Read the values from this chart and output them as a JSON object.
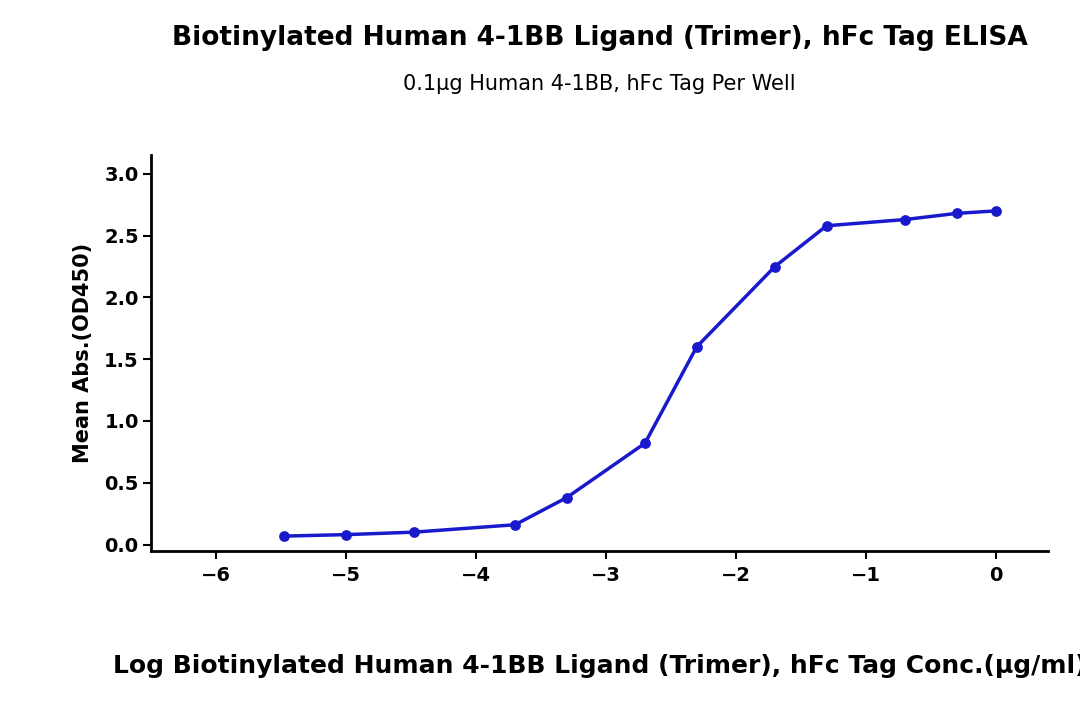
{
  "title": "Biotinylated Human 4-1BB Ligand (Trimer), hFc Tag ELISA",
  "subtitle": "0.1μg Human 4-1BB, hFc Tag Per Well",
  "xlabel": "Log Biotinylated Human 4-1BB Ligand (Trimer), hFc Tag Conc.(μg/ml)",
  "ylabel": "Mean Abs.(OD450)",
  "title_fontsize": 19,
  "subtitle_fontsize": 15,
  "xlabel_fontsize": 18,
  "ylabel_fontsize": 15,
  "line_color": "#1a1acd",
  "marker_color": "#1a1acd",
  "background_color": "#ffffff",
  "xlim": [
    -6.5,
    0.4
  ],
  "ylim": [
    -0.05,
    3.15
  ],
  "xticks": [
    -6,
    -5,
    -4,
    -3,
    -2,
    -1,
    0
  ],
  "yticks": [
    0.0,
    0.5,
    1.0,
    1.5,
    2.0,
    2.5,
    3.0
  ],
  "data_x": [
    -5.477,
    -5.0,
    -4.477,
    -3.699,
    -3.301,
    -2.699,
    -2.301,
    -1.699,
    -1.301,
    -0.699,
    -0.301,
    0.0
  ],
  "data_y": [
    0.068,
    0.08,
    0.1,
    0.16,
    0.38,
    0.82,
    1.6,
    2.25,
    2.58,
    2.63,
    2.68,
    2.7
  ]
}
